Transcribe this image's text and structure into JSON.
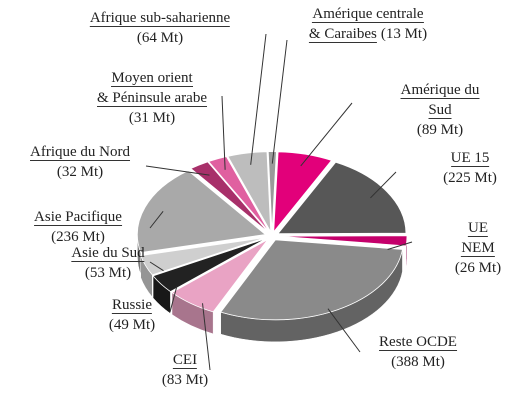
{
  "chart_data": {
    "type": "pie3d",
    "categories": [
      "Amérique centrale\n& Caraibes",
      "Amérique du Sud",
      "UE 15",
      "UE NEM",
      "Reste OCDE",
      "CEI",
      "Russie",
      "Asie du Sud",
      "Asie Pacifique",
      "Afrique du Nord",
      "Moyen orient\n& Péninsule arabe",
      "Afrique sub-saharienne"
    ],
    "values": [
      13,
      89,
      225,
      26,
      388,
      83,
      49,
      53,
      236,
      32,
      31,
      64
    ],
    "value_labels": [
      "(13 Mt)",
      "(89 Mt)",
      "(225 Mt)",
      "(26 Mt)",
      "(388 Mt)",
      "(83 Mt)",
      "(49 Mt)",
      "(53 Mt)",
      "(236 Mt)",
      "(32 Mt)",
      "(31 Mt)",
      "(64 Mt)"
    ],
    "colors": [
      "#9a9a9a",
      "#e2007a",
      "#575757",
      "#c4006b",
      "#8a8a8a",
      "#e9a3c4",
      "#222222",
      "#cfcfcf",
      "#a9a9a9",
      "#a8306a",
      "#e060a0",
      "#bdbdbd"
    ]
  }
}
